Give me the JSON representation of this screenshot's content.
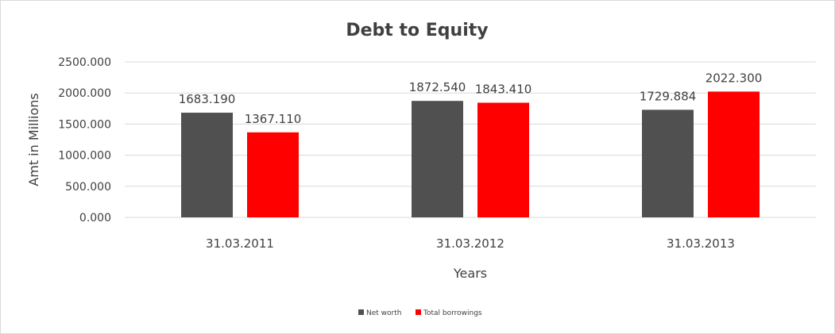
{
  "chart_data": {
    "type": "bar",
    "title": "Debt to Equity",
    "xlabel": "Years",
    "ylabel": "Amt in Millions",
    "categories": [
      "31.03.2011",
      "31.03.2012",
      "31.03.2013"
    ],
    "series": [
      {
        "name": "Net worth",
        "color": "#505050",
        "values": [
          1683.19,
          1872.54,
          1729.884
        ],
        "labels": [
          "1683.190",
          "1872.540",
          "1729.884"
        ]
      },
      {
        "name": "Total borrowings",
        "color": "#ff0000",
        "values": [
          1367.11,
          1843.41,
          2022.3
        ],
        "labels": [
          "1367.110",
          "1843.410",
          "2022.300"
        ]
      }
    ],
    "ylim": [
      0,
      2500
    ],
    "yticks": [
      0,
      500,
      1000,
      1500,
      2000,
      2500
    ],
    "ytick_labels": [
      "0.000",
      "500.000",
      "1000.000",
      "1500.000",
      "2000.000",
      "2500.000"
    ],
    "grid": true,
    "legend_position": "bottom"
  }
}
